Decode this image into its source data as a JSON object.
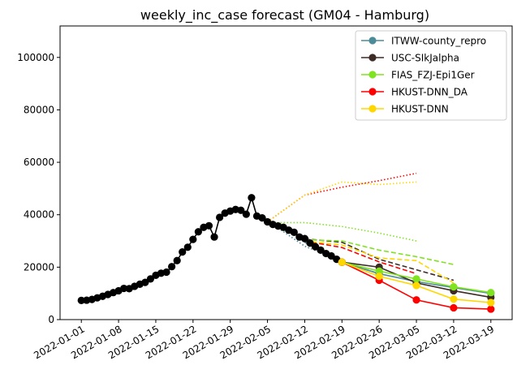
{
  "chart_data": {
    "type": "line",
    "title": "weekly_inc_case forecast (GM04 - Hamburg)",
    "xlabel": "",
    "ylabel": "",
    "x_range": [
      "2021-12-28",
      "2022-03-23"
    ],
    "ylim": [
      0,
      112000
    ],
    "x_ticks": [
      "2022-01-01",
      "2022-01-08",
      "2022-01-15",
      "2022-01-22",
      "2022-01-29",
      "2022-02-05",
      "2022-02-12",
      "2022-02-19",
      "2022-02-26",
      "2022-03-05",
      "2022-03-12",
      "2022-03-19"
    ],
    "y_ticks": [
      0,
      20000,
      40000,
      60000,
      80000,
      100000
    ],
    "y_tick_labels": [
      "0",
      "20000",
      "40000",
      "60000",
      "80000",
      "100000"
    ],
    "grid": false,
    "legend_position": "top-right",
    "observed": {
      "color": "#000000",
      "x": [
        "2022-01-01",
        "2022-01-02",
        "2022-01-03",
        "2022-01-04",
        "2022-01-05",
        "2022-01-06",
        "2022-01-07",
        "2022-01-08",
        "2022-01-09",
        "2022-01-10",
        "2022-01-11",
        "2022-01-12",
        "2022-01-13",
        "2022-01-14",
        "2022-01-15",
        "2022-01-16",
        "2022-01-17",
        "2022-01-18",
        "2022-01-19",
        "2022-01-20",
        "2022-01-21",
        "2022-01-22",
        "2022-01-23",
        "2022-01-24",
        "2022-01-25",
        "2022-01-26",
        "2022-01-27",
        "2022-01-28",
        "2022-01-29",
        "2022-01-30",
        "2022-01-31",
        "2022-02-01",
        "2022-02-02",
        "2022-02-03",
        "2022-02-04",
        "2022-02-05",
        "2022-02-06",
        "2022-02-07",
        "2022-02-08",
        "2022-02-09",
        "2022-02-10",
        "2022-02-11",
        "2022-02-12",
        "2022-02-13",
        "2022-02-14",
        "2022-02-15",
        "2022-02-16",
        "2022-02-17",
        "2022-02-18",
        "2022-02-19"
      ],
      "y": [
        7300,
        7400,
        7700,
        8300,
        8900,
        9600,
        10300,
        11000,
        11900,
        11800,
        12700,
        13500,
        14200,
        15500,
        16900,
        17700,
        18100,
        20200,
        22500,
        25800,
        27600,
        30600,
        33500,
        35200,
        35800,
        31500,
        39000,
        40600,
        41400,
        42000,
        41700,
        40200,
        46500,
        39500,
        38800,
        37300,
        36300,
        35700,
        35200,
        34100,
        33300,
        31500,
        30900,
        29200,
        27800,
        26500,
        25200,
        24300,
        23000,
        21900
      ]
    },
    "series": [
      {
        "name": "ITWW-county_repro",
        "color": "#4c8c99",
        "x": [
          "2022-02-19",
          "2022-02-26",
          "2022-03-05",
          "2022-03-12",
          "2022-03-19"
        ],
        "y": [
          21900,
          17500,
          14500,
          12200,
          10000
        ],
        "forecast_lines": [
          {
            "style": "dotted",
            "x": [
              "2022-02-06",
              "2022-02-12",
              "2022-02-19"
            ],
            "y": [
              36300,
              28000,
              22300
            ]
          },
          {
            "style": "dashed",
            "x": [
              "2022-02-12",
              "2022-02-19",
              "2022-02-26"
            ],
            "y": [
              29500,
              22000,
              17500
            ]
          }
        ]
      },
      {
        "name": "USC-SIkJalpha",
        "color": "#3d2b26",
        "x": [
          "2022-02-19",
          "2022-02-26",
          "2022-03-05",
          "2022-03-12",
          "2022-03-19"
        ],
        "y": [
          21900,
          20000,
          14000,
          11000,
          8500
        ],
        "forecast_lines": [
          {
            "style": "dashed",
            "x": [
              "2022-02-12",
              "2022-02-19",
              "2022-02-26",
              "2022-03-05",
              "2022-03-12"
            ],
            "y": [
              30800,
              29500,
              23000,
              19000,
              15000
            ]
          }
        ]
      },
      {
        "name": "FIAS_FZJ-Epi1Ger",
        "color": "#80e31f",
        "x": [
          "2022-02-19",
          "2022-02-26",
          "2022-03-05",
          "2022-03-12",
          "2022-03-19"
        ],
        "y": [
          21900,
          18500,
          15500,
          12500,
          10300
        ],
        "forecast_lines": [
          {
            "style": "dotted",
            "x": [
              "2022-02-05",
              "2022-02-12",
              "2022-02-19",
              "2022-02-26",
              "2022-03-05"
            ],
            "y": [
              37000,
              37000,
              35500,
              33000,
              30000
            ]
          },
          {
            "style": "dashed",
            "x": [
              "2022-02-12",
              "2022-02-19",
              "2022-02-26",
              "2022-03-05",
              "2022-03-12"
            ],
            "y": [
              30500,
              30000,
              26500,
              24000,
              21000
            ]
          }
        ]
      },
      {
        "name": "HKUST-DNN_DA",
        "color": "#ff0000",
        "x": [
          "2022-02-19",
          "2022-02-26",
          "2022-03-05",
          "2022-03-12",
          "2022-03-19"
        ],
        "y": [
          21900,
          15000,
          7500,
          4500,
          4000
        ],
        "forecast_lines": [
          {
            "style": "dotted",
            "x": [
              "2022-02-05",
              "2022-02-12",
              "2022-02-19",
              "2022-02-26",
              "2022-03-05"
            ],
            "y": [
              37300,
              47500,
              50500,
              53000,
              55800
            ]
          },
          {
            "style": "dashed",
            "x": [
              "2022-02-12",
              "2022-02-19",
              "2022-02-26",
              "2022-03-05"
            ],
            "y": [
              30000,
              27500,
              22000,
              17500
            ]
          }
        ]
      },
      {
        "name": "HKUST-DNN",
        "color": "#ffd700",
        "x": [
          "2022-02-19",
          "2022-02-26",
          "2022-03-05",
          "2022-03-12",
          "2022-03-19"
        ],
        "y": [
          21900,
          16500,
          13000,
          7800,
          6500
        ],
        "forecast_lines": [
          {
            "style": "dotted",
            "x": [
              "2022-02-05",
              "2022-02-12",
              "2022-02-19",
              "2022-02-26",
              "2022-03-05"
            ],
            "y": [
              37300,
              47500,
              52500,
              51500,
              52500
            ]
          },
          {
            "style": "dashed",
            "x": [
              "2022-02-12",
              "2022-02-19",
              "2022-02-26",
              "2022-03-05",
              "2022-03-12"
            ],
            "y": [
              30000,
              28500,
              23500,
              22500,
              14000
            ]
          }
        ]
      }
    ]
  }
}
